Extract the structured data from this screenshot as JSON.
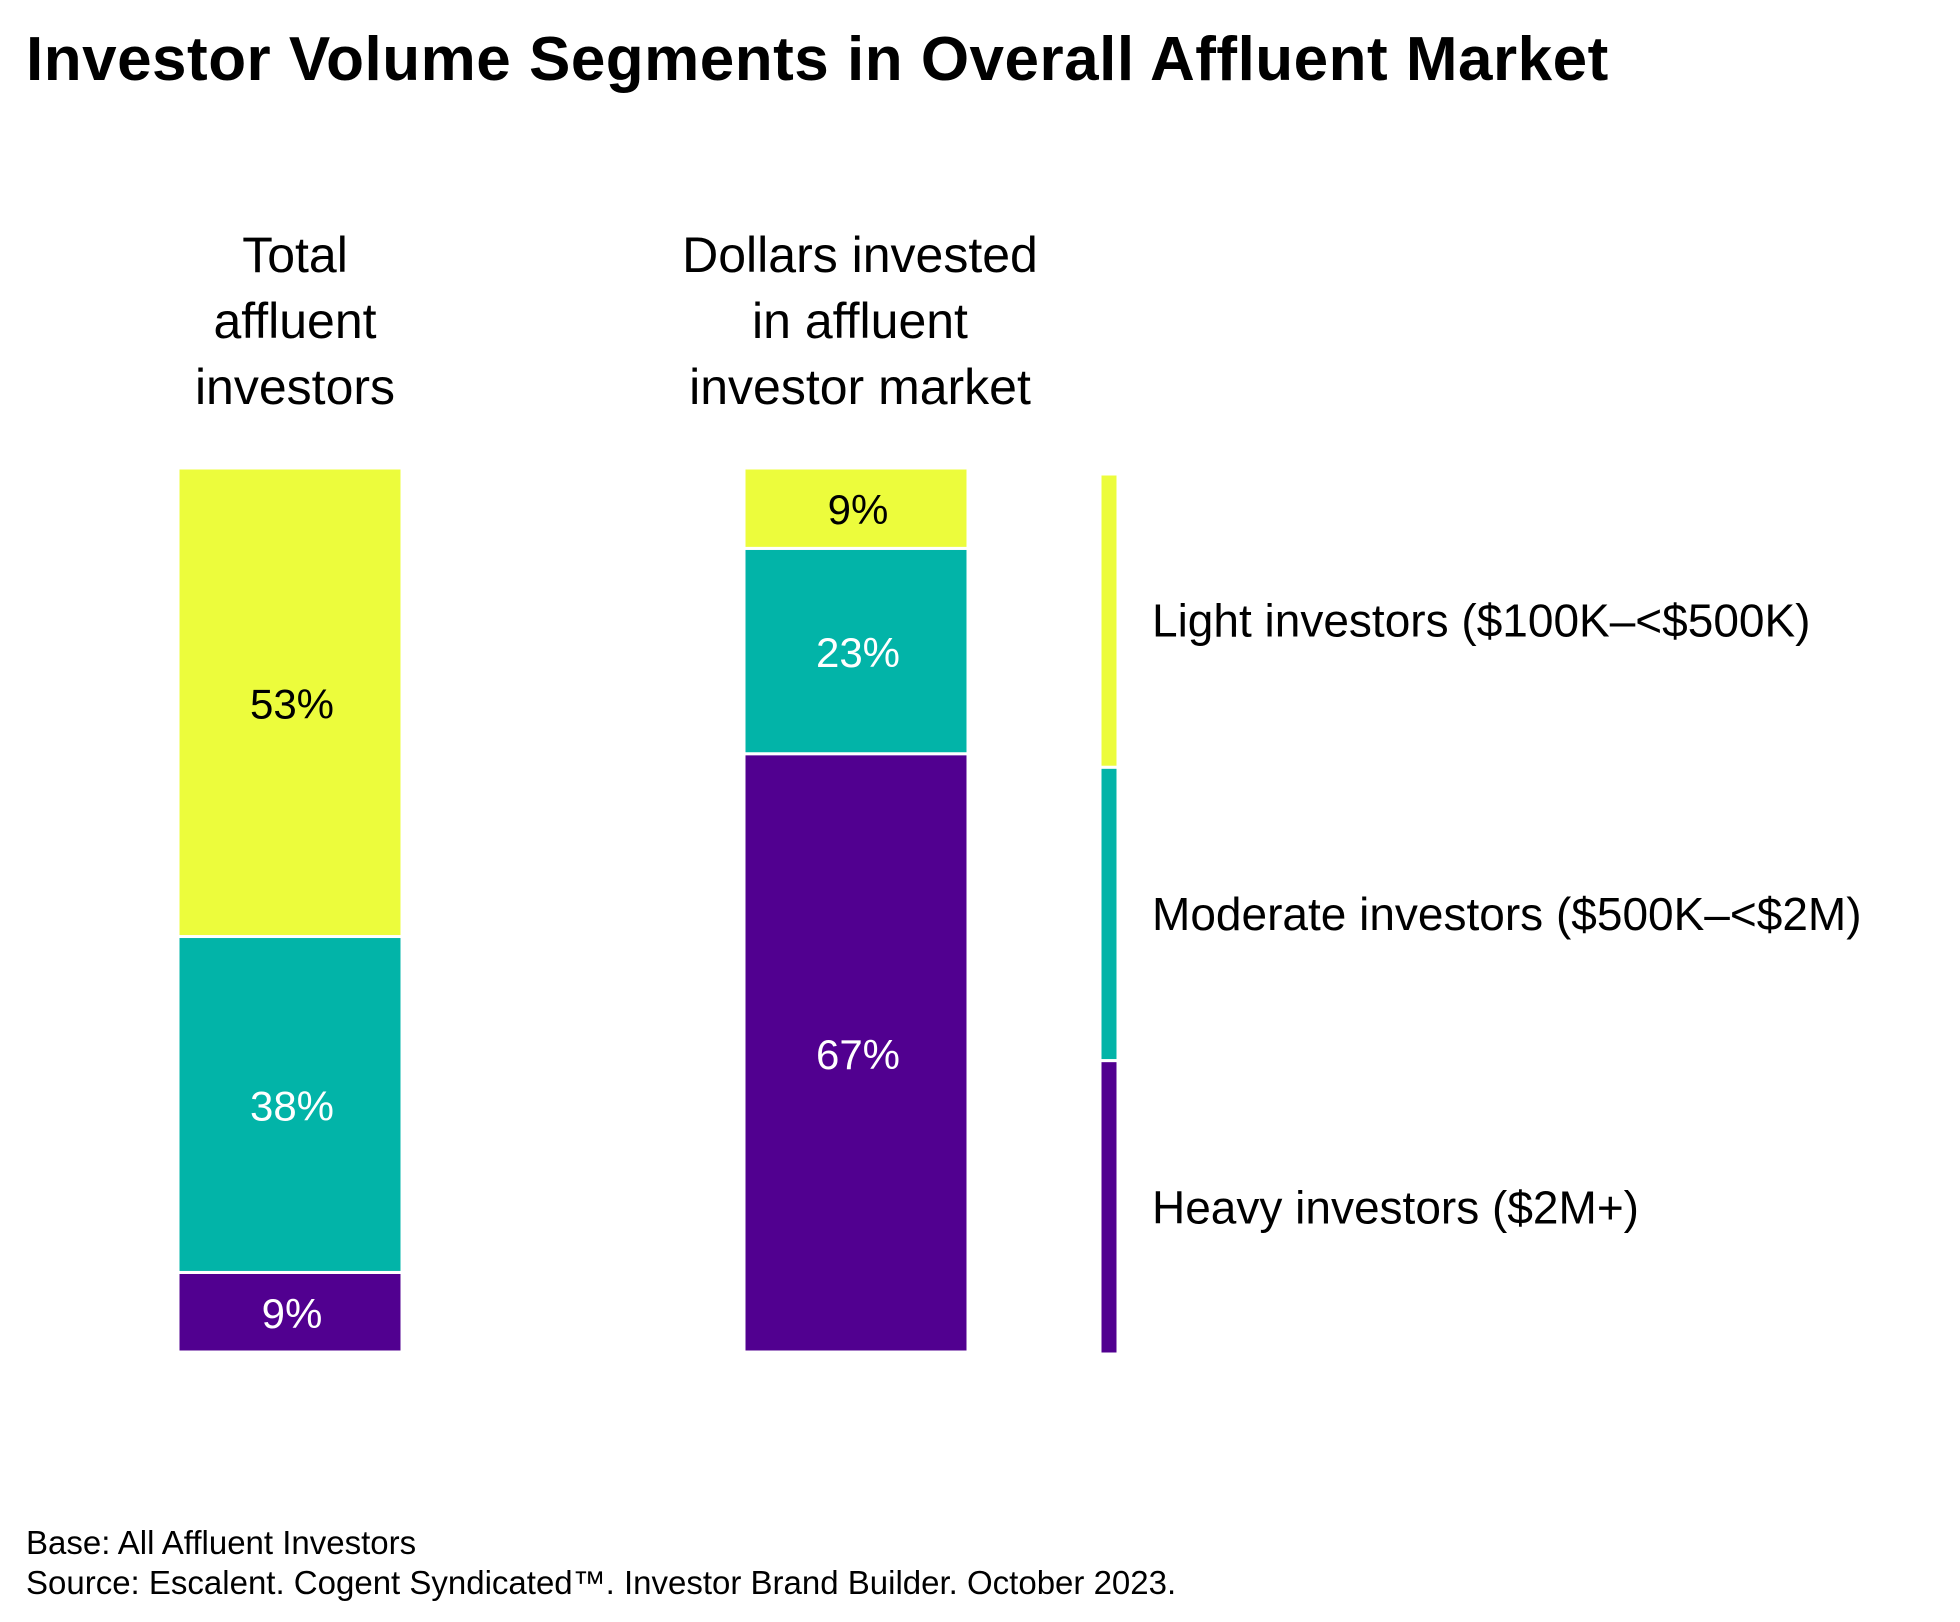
{
  "title": "Investor Volume Segments in Overall Affluent Market",
  "chart_data": {
    "type": "bar",
    "stacked": true,
    "normalized_to": 100,
    "columns": [
      {
        "header_lines": [
          "Total",
          "affluent",
          "investors"
        ],
        "values": {
          "Heavy": 9,
          "Moderate": 38,
          "Light": 53
        },
        "labels": {
          "Heavy": "9%",
          "Moderate": "38%",
          "Light": "53%"
        }
      },
      {
        "header_lines": [
          "Dollars invested",
          "in affluent",
          "investor market"
        ],
        "values": {
          "Heavy": 67,
          "Moderate": 23,
          "Light": 9
        },
        "labels": {
          "Heavy": "67%",
          "Moderate": "23%",
          "Light": "9%"
        }
      }
    ],
    "series": [
      {
        "key": "Light",
        "name": "Light investors ($100K–<$500K)",
        "color": "#ecfc3c",
        "label_color": "#000000"
      },
      {
        "key": "Moderate",
        "name": "Moderate investors ($500K–<$2M)",
        "color": "#02b4a8",
        "label_color": "#ffffff"
      },
      {
        "key": "Heavy",
        "name": "Heavy investors ($2M+)",
        "color": "#510090",
        "label_color": "#ffffff"
      }
    ],
    "stack_order_bottom_to_top": [
      "Heavy",
      "Moderate",
      "Light"
    ],
    "legend_position": "right"
  },
  "footer": {
    "base": "Base: All Affluent Investors",
    "source": "Source: Escalent. Cogent Syndicated™. Investor Brand Builder. October 2023."
  }
}
